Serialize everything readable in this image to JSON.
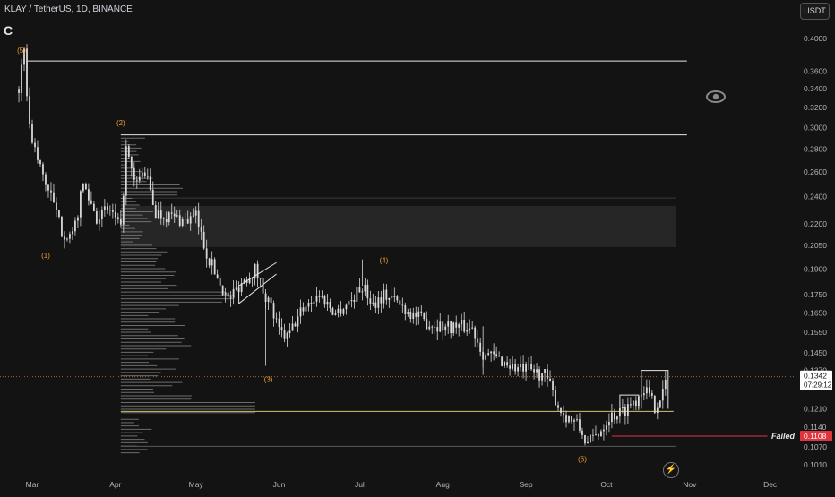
{
  "header": {
    "symbol": "KLAY / TetherUS, 1D, BINANCE",
    "chart_letter": "C",
    "currency": "USDT"
  },
  "icons": {
    "eye": "eye-icon",
    "bolt": "lightning-icon"
  },
  "colors": {
    "background": "#131313",
    "candle": "#d8d8d8",
    "wave_label": "#f0a030",
    "white_line": "#e6e6e6",
    "yellow_line": "#d4c270",
    "failed_red": "#e0353d",
    "price_tag_bg": "#ffffff",
    "zone_fill": "#2a2a2a"
  },
  "chart_data": {
    "type": "candlestick",
    "y_scale": "log",
    "yticks": [
      "0.4000",
      "0.3600",
      "0.3400",
      "0.3200",
      "0.3000",
      "0.2800",
      "0.2600",
      "0.2400",
      "0.2200",
      "0.2050",
      "0.1900",
      "0.1750",
      "0.1650",
      "0.1550",
      "0.1450",
      "0.1370",
      "0.1210",
      "0.1140",
      "0.1070",
      "0.1010"
    ],
    "ytick_values": [
      0.4,
      0.36,
      0.34,
      0.32,
      0.3,
      0.28,
      0.26,
      0.24,
      0.22,
      0.205,
      0.19,
      0.175,
      0.165,
      0.155,
      0.145,
      0.137,
      0.121,
      0.114,
      0.107,
      0.101
    ],
    "xticks": [
      "Mar",
      "Apr",
      "May",
      "Jun",
      "Jul",
      "Aug",
      "Sep",
      "Oct",
      "Nov",
      "Dec"
    ],
    "wave_labels": [
      {
        "text": "(5)",
        "x": "late Feb",
        "y": 0.382
      },
      {
        "text": "(1)",
        "x": "early Mar",
        "y": 0.197
      },
      {
        "text": "(2)",
        "x": "early Apr",
        "y": 0.302
      },
      {
        "text": "(3)",
        "x": "late May",
        "y": 0.132
      },
      {
        "text": "(4)",
        "x": "early Jul",
        "y": 0.194
      },
      {
        "text": "(5)",
        "x": "late Sep",
        "y": 0.102
      }
    ],
    "price_path": [
      [
        "Feb 24",
        0.34
      ],
      [
        "Feb 26",
        0.38
      ],
      [
        "Feb 28",
        0.3
      ],
      [
        "Mar 3",
        0.27
      ],
      [
        "Mar 8",
        0.24
      ],
      [
        "Mar 12",
        0.215
      ],
      [
        "Mar 16",
        0.21
      ],
      [
        "Mar 20",
        0.25
      ],
      [
        "Mar 25",
        0.225
      ],
      [
        "Mar 30",
        0.23
      ],
      [
        "Apr 3",
        0.215
      ],
      [
        "Apr 5",
        0.28
      ],
      [
        "Apr 8",
        0.25
      ],
      [
        "Apr 12",
        0.26
      ],
      [
        "Apr 16",
        0.228
      ],
      [
        "Apr 22",
        0.225
      ],
      [
        "Apr 27",
        0.222
      ],
      [
        "May 1",
        0.225
      ],
      [
        "May 5",
        0.2
      ],
      [
        "May 9",
        0.185
      ],
      [
        "May 13",
        0.172
      ],
      [
        "May 18",
        0.182
      ],
      [
        "May 23",
        0.19
      ],
      [
        "May 26",
        0.178
      ],
      [
        "May 29",
        0.168
      ],
      [
        "Jun 1",
        0.155
      ],
      [
        "Jun 4",
        0.152
      ],
      [
        "Jun 10",
        0.168
      ],
      [
        "Jun 16",
        0.175
      ],
      [
        "Jun 22",
        0.165
      ],
      [
        "Jun 28",
        0.172
      ],
      [
        "Jul 2",
        0.18
      ],
      [
        "Jul 6",
        0.17
      ],
      [
        "Jul 10",
        0.175
      ],
      [
        "Jul 14",
        0.172
      ],
      [
        "Jul 20",
        0.165
      ],
      [
        "Jul 26",
        0.16
      ],
      [
        "Aug 1",
        0.158
      ],
      [
        "Aug 7",
        0.158
      ],
      [
        "Aug 12",
        0.157
      ],
      [
        "Aug 16",
        0.145
      ],
      [
        "Aug 22",
        0.142
      ],
      [
        "Aug 28",
        0.138
      ],
      [
        "Sep 2",
        0.137
      ],
      [
        "Sep 8",
        0.135
      ],
      [
        "Sep 14",
        0.12
      ],
      [
        "Sep 20",
        0.115
      ],
      [
        "Sep 24",
        0.108
      ],
      [
        "Sep 28",
        0.112
      ],
      [
        "Oct 2",
        0.118
      ],
      [
        "Oct 7",
        0.12
      ],
      [
        "Oct 12",
        0.125
      ],
      [
        "Oct 15",
        0.13
      ],
      [
        "Oct 19",
        0.122
      ],
      [
        "Oct 22",
        0.128
      ],
      [
        "Oct 24",
        0.1342
      ]
    ],
    "horizontal_lines": [
      {
        "y": 0.372,
        "color": "white",
        "from": "Feb 27",
        "to": "Oct 31"
      },
      {
        "y": 0.293,
        "color": "white",
        "from": "Apr 3",
        "to": "Oct 31"
      },
      {
        "y": 0.12,
        "color": "yellow",
        "from": "Apr 3",
        "to": "Oct 26"
      },
      {
        "y": 0.1108,
        "color": "red",
        "from": "Oct 3",
        "to": "Nov 30",
        "label": "Failed"
      }
    ],
    "zone": {
      "from": "Apr 3",
      "to": "Oct 27",
      "y_low": 0.204,
      "y_high": 0.233
    },
    "price_tags": [
      {
        "value": "0.1342",
        "sub": "07:29:12"
      },
      {
        "value": "0.1108"
      }
    ],
    "annotation": "Failed",
    "ylim": [
      0.1,
      0.4
    ]
  }
}
